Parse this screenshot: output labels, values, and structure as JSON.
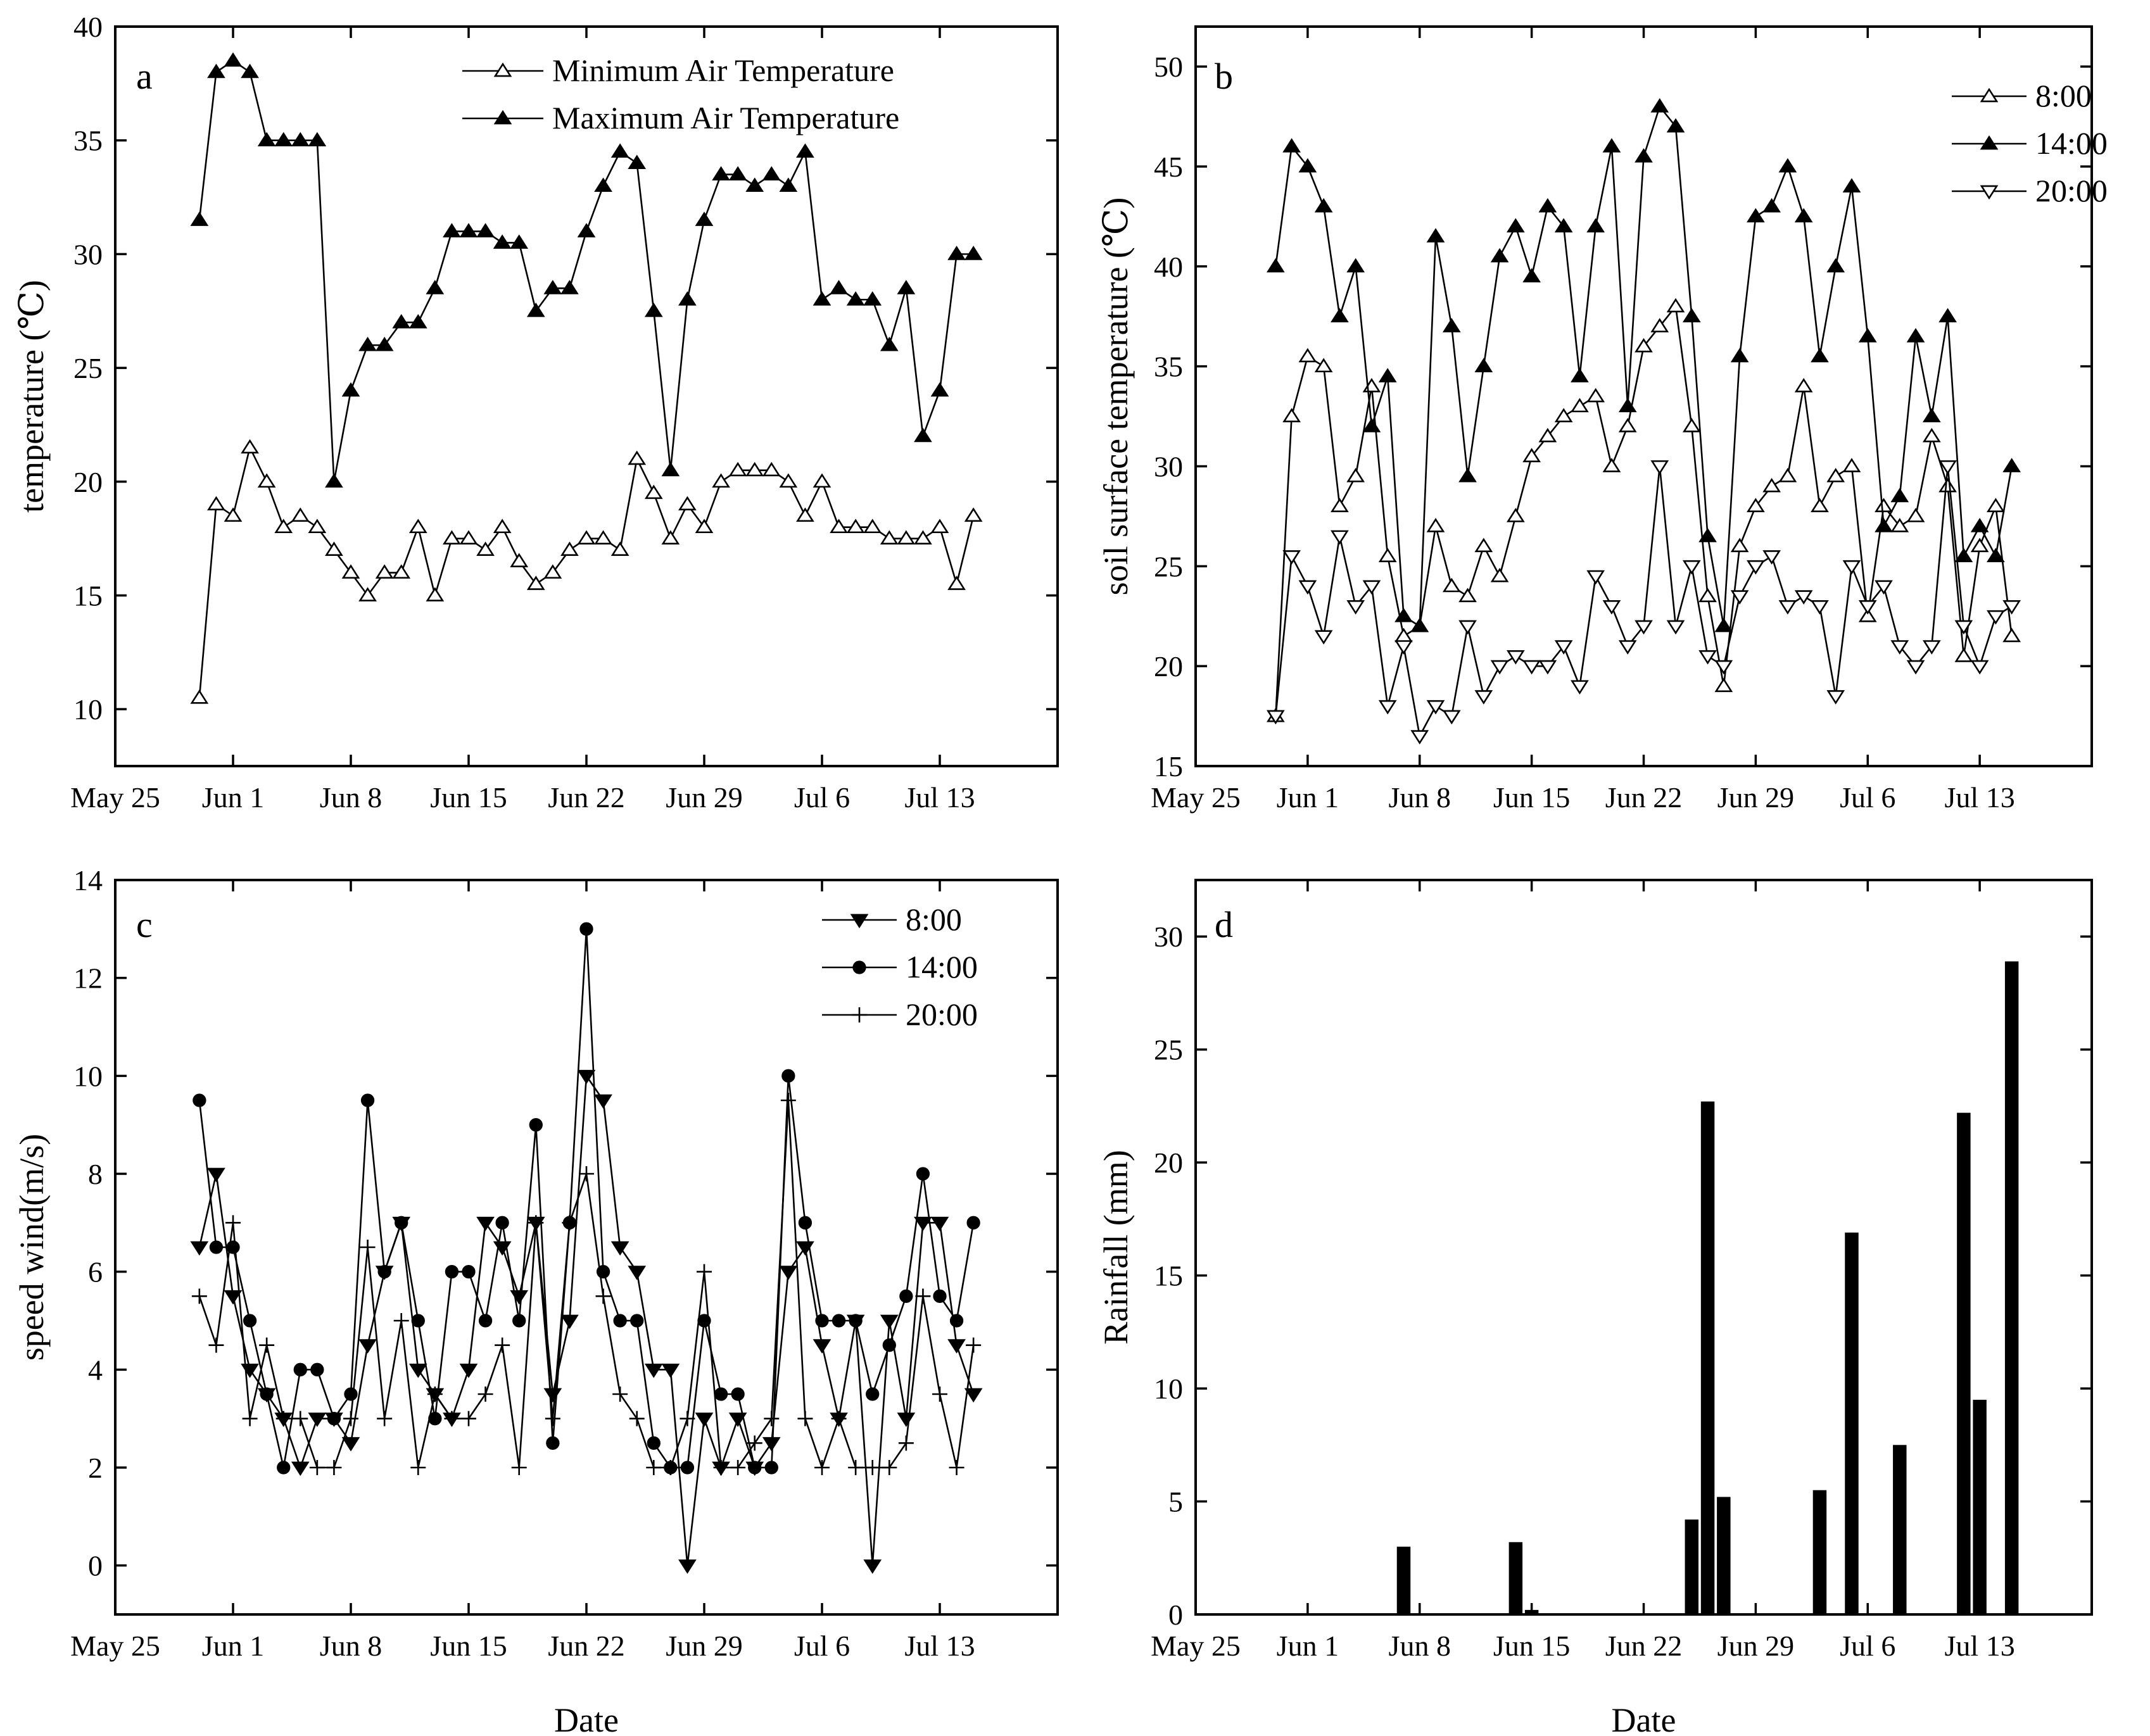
{
  "figure": {
    "xlabel_c": "Date",
    "xlabel_d": "Date"
  },
  "x_ticks": [
    {
      "day": -7,
      "label": "May 25"
    },
    {
      "day": 0,
      "label": "Jun 1"
    },
    {
      "day": 7,
      "label": "Jun 8"
    },
    {
      "day": 14,
      "label": "Jun 15"
    },
    {
      "day": 21,
      "label": "Jun 22"
    },
    {
      "day": 28,
      "label": "Jun 29"
    },
    {
      "day": 35,
      "label": "Jul 6"
    },
    {
      "day": 42,
      "label": "Jul 13"
    }
  ],
  "chart_data": [
    {
      "id": "a",
      "type": "line",
      "panel_label": "a",
      "title": "",
      "xlabel": "",
      "ylabel": "temperature (℃)",
      "xlim": [
        -7,
        49
      ],
      "ylim": [
        7.5,
        40
      ],
      "yticks": [
        10,
        15,
        20,
        25,
        30,
        35,
        40
      ],
      "legend_position": "top-right",
      "series": [
        {
          "name": "Minimum Air Temperature",
          "marker": "triangle-up-open",
          "x": [
            -2,
            -1,
            0,
            1,
            2,
            3,
            4,
            5,
            6,
            7,
            8,
            9,
            10,
            11,
            12,
            13,
            14,
            15,
            16,
            17,
            18,
            19,
            20,
            21,
            22,
            23,
            24,
            25,
            26,
            27,
            28,
            29,
            30,
            31,
            32,
            33,
            34,
            35,
            36,
            37,
            38,
            39,
            40,
            41,
            42,
            43,
            44
          ],
          "y": [
            10.5,
            19,
            18.5,
            21.5,
            20,
            18,
            18.5,
            18,
            17,
            16,
            15,
            16,
            16,
            18,
            15,
            17.5,
            17.5,
            17,
            18,
            16.5,
            15.5,
            16,
            17,
            17.5,
            17.5,
            17,
            21,
            19.5,
            17.5,
            19,
            18,
            20,
            20.5,
            20.5,
            20.5,
            20,
            18.5,
            20,
            18,
            18,
            18,
            17.5,
            17.5,
            17.5,
            18,
            15.5,
            18.5
          ]
        },
        {
          "name": "Maximum  Air Temperature",
          "marker": "triangle-up-filled",
          "x": [
            -2,
            -1,
            0,
            1,
            2,
            3,
            4,
            5,
            6,
            7,
            8,
            9,
            10,
            11,
            12,
            13,
            14,
            15,
            16,
            17,
            18,
            19,
            20,
            21,
            22,
            23,
            24,
            25,
            26,
            27,
            28,
            29,
            30,
            31,
            32,
            33,
            34,
            35,
            36,
            37,
            38,
            39,
            40,
            41,
            42,
            43,
            44
          ],
          "y": [
            31.5,
            38,
            38.5,
            38,
            35,
            35,
            35,
            35,
            20,
            24,
            26,
            26,
            27,
            27,
            28.5,
            31,
            31,
            31,
            30.5,
            30.5,
            27.5,
            28.5,
            28.5,
            31,
            33,
            34.5,
            34,
            27.5,
            20.5,
            28,
            31.5,
            33.5,
            33.5,
            33,
            33.5,
            33,
            34.5,
            28,
            28.5,
            28,
            28,
            26,
            28.5,
            22,
            24,
            30,
            30
          ]
        }
      ]
    },
    {
      "id": "b",
      "type": "line",
      "panel_label": "b",
      "title": "",
      "xlabel": "",
      "ylabel": "soil surface temperature (℃)",
      "xlim": [
        -7,
        49
      ],
      "ylim": [
        15,
        52
      ],
      "yticks": [
        15,
        20,
        25,
        30,
        35,
        40,
        45,
        50
      ],
      "legend_position": "top-right",
      "series": [
        {
          "name": "8:00",
          "marker": "triangle-up-open",
          "x": [
            -2,
            -1,
            0,
            1,
            2,
            3,
            4,
            5,
            6,
            7,
            8,
            9,
            10,
            11,
            12,
            13,
            14,
            15,
            16,
            17,
            18,
            19,
            20,
            21,
            22,
            23,
            24,
            25,
            26,
            27,
            28,
            29,
            30,
            31,
            32,
            33,
            34,
            35,
            36,
            37,
            38,
            39,
            40,
            41,
            42,
            43,
            44
          ],
          "y": [
            17.5,
            32.5,
            35.5,
            35,
            28,
            29.5,
            34,
            25.5,
            21.5,
            22,
            27,
            24,
            23.5,
            26,
            24.5,
            27.5,
            30.5,
            31.5,
            32.5,
            33,
            33.5,
            30,
            32,
            36,
            37,
            38,
            32,
            23.5,
            19,
            26,
            28,
            29,
            29.5,
            34,
            28,
            29.5,
            30,
            22.5,
            28,
            27,
            27.5,
            31.5,
            29,
            20.5,
            26,
            28,
            21.5
          ]
        },
        {
          "name": "14:00",
          "marker": "triangle-up-filled",
          "x": [
            -2,
            -1,
            0,
            1,
            2,
            3,
            4,
            5,
            6,
            7,
            8,
            9,
            10,
            11,
            12,
            13,
            14,
            15,
            16,
            17,
            18,
            19,
            20,
            21,
            22,
            23,
            24,
            25,
            26,
            27,
            28,
            29,
            30,
            31,
            32,
            33,
            34,
            35,
            36,
            37,
            38,
            39,
            40,
            41,
            42,
            43,
            44
          ],
          "y": [
            40,
            46,
            45,
            43,
            37.5,
            40,
            32,
            34.5,
            22.5,
            22,
            41.5,
            37,
            29.5,
            35,
            40.5,
            42,
            39.5,
            43,
            42,
            34.5,
            42,
            46,
            33,
            45.5,
            48,
            47,
            37.5,
            26.5,
            22,
            35.5,
            42.5,
            43,
            45,
            42.5,
            35.5,
            40,
            44,
            36.5,
            27,
            28.5,
            36.5,
            32.5,
            37.5,
            25.5,
            27,
            25.5,
            30
          ]
        },
        {
          "name": "20:00",
          "marker": "triangle-down-open",
          "x": [
            -2,
            -1,
            0,
            1,
            2,
            3,
            4,
            5,
            6,
            7,
            8,
            9,
            10,
            11,
            12,
            13,
            14,
            15,
            16,
            17,
            18,
            19,
            20,
            21,
            22,
            23,
            24,
            25,
            26,
            27,
            28,
            29,
            30,
            31,
            32,
            33,
            34,
            35,
            36,
            37,
            38,
            39,
            40,
            41,
            42,
            43,
            44
          ],
          "y": [
            17.5,
            25.5,
            24,
            21.5,
            26.5,
            23,
            24,
            18,
            21,
            16.5,
            18,
            17.5,
            22,
            18.5,
            20,
            20.5,
            20,
            20,
            21,
            19,
            24.5,
            23,
            21,
            22,
            30,
            22,
            25,
            20.5,
            20,
            23.5,
            25,
            25.5,
            23,
            23.5,
            23,
            18.5,
            25,
            23,
            24,
            21,
            20,
            21,
            30,
            22,
            20,
            22.5,
            23
          ]
        }
      ]
    },
    {
      "id": "c",
      "type": "line",
      "panel_label": "c",
      "title": "",
      "xlabel": "Date",
      "ylabel": "speed wind(m/s)",
      "xlim": [
        -7,
        49
      ],
      "ylim": [
        -1,
        14
      ],
      "yticks": [
        0,
        2,
        4,
        6,
        8,
        10,
        12,
        14
      ],
      "legend_position": "top-right",
      "series": [
        {
          "name": "8:00",
          "marker": "triangle-down-filled",
          "x": [
            -2,
            -1,
            0,
            1,
            2,
            3,
            4,
            5,
            6,
            7,
            8,
            9,
            10,
            11,
            12,
            13,
            14,
            15,
            16,
            17,
            18,
            19,
            20,
            21,
            22,
            23,
            24,
            25,
            26,
            27,
            28,
            29,
            30,
            31,
            32,
            33,
            34,
            35,
            36,
            37,
            38,
            39,
            40,
            41,
            42,
            43,
            44
          ],
          "y": [
            6.5,
            8,
            5.5,
            4,
            3.5,
            3,
            2,
            3,
            3,
            2.5,
            4.5,
            6,
            7,
            4,
            3.5,
            3,
            4,
            7,
            6.5,
            5.5,
            7,
            3.5,
            5,
            10,
            9.5,
            6.5,
            6,
            4,
            4,
            0,
            3,
            2,
            3,
            2,
            2.5,
            6,
            6.5,
            4.5,
            3,
            5,
            0,
            5,
            3,
            7,
            7,
            4.5,
            3.5
          ]
        },
        {
          "name": "14:00",
          "marker": "circle-filled",
          "x": [
            -2,
            -1,
            0,
            1,
            2,
            3,
            4,
            5,
            6,
            7,
            8,
            9,
            10,
            11,
            12,
            13,
            14,
            15,
            16,
            17,
            18,
            19,
            20,
            21,
            22,
            23,
            24,
            25,
            26,
            27,
            28,
            29,
            30,
            31,
            32,
            33,
            34,
            35,
            36,
            37,
            38,
            39,
            40,
            41,
            42,
            43,
            44
          ],
          "y": [
            9.5,
            6.5,
            6.5,
            5,
            3.5,
            2,
            4,
            4,
            3,
            3.5,
            9.5,
            6,
            7,
            5,
            3,
            6,
            6,
            5,
            7,
            5,
            9,
            2.5,
            7,
            13,
            6,
            5,
            5,
            2.5,
            2,
            2,
            5,
            3.5,
            3.5,
            2,
            2,
            10,
            7,
            5,
            5,
            5,
            3.5,
            4.5,
            5.5,
            8,
            5.5,
            5,
            7
          ]
        },
        {
          "name": "20:00",
          "marker": "plus",
          "x": [
            -2,
            -1,
            0,
            1,
            2,
            3,
            4,
            5,
            6,
            7,
            8,
            9,
            10,
            11,
            12,
            13,
            14,
            15,
            16,
            17,
            18,
            19,
            20,
            21,
            22,
            23,
            24,
            25,
            26,
            27,
            28,
            29,
            30,
            31,
            32,
            33,
            34,
            35,
            36,
            37,
            38,
            39,
            40,
            41,
            42,
            43,
            44
          ],
          "y": [
            5.5,
            4.5,
            7,
            3,
            4.5,
            3,
            3,
            2,
            2,
            3,
            6.5,
            3,
            5,
            2,
            3.5,
            3,
            3,
            3.5,
            4.5,
            2,
            7,
            3,
            7,
            8,
            5.5,
            3.5,
            3,
            2,
            2,
            3,
            6,
            2,
            2,
            2.5,
            3,
            9.5,
            3,
            2,
            3,
            2,
            2,
            2,
            2.5,
            5.5,
            3.5,
            2,
            4.5
          ]
        }
      ]
    },
    {
      "id": "d",
      "type": "bar",
      "panel_label": "d",
      "title": "",
      "xlabel": "Date",
      "ylabel": "Rainfall (mm)",
      "xlim": [
        -7,
        49
      ],
      "ylim": [
        0,
        32.5
      ],
      "yticks": [
        0,
        5,
        10,
        15,
        20,
        25,
        30
      ],
      "series": [
        {
          "name": "Rainfall",
          "x": [
            6,
            13,
            14,
            24,
            25,
            26,
            32,
            34,
            37,
            41,
            42,
            44
          ],
          "values": [
            3,
            3.2,
            0.2,
            4.2,
            22.7,
            5.2,
            5.5,
            16.9,
            7.5,
            22.2,
            9.5,
            28.9
          ]
        }
      ]
    }
  ]
}
